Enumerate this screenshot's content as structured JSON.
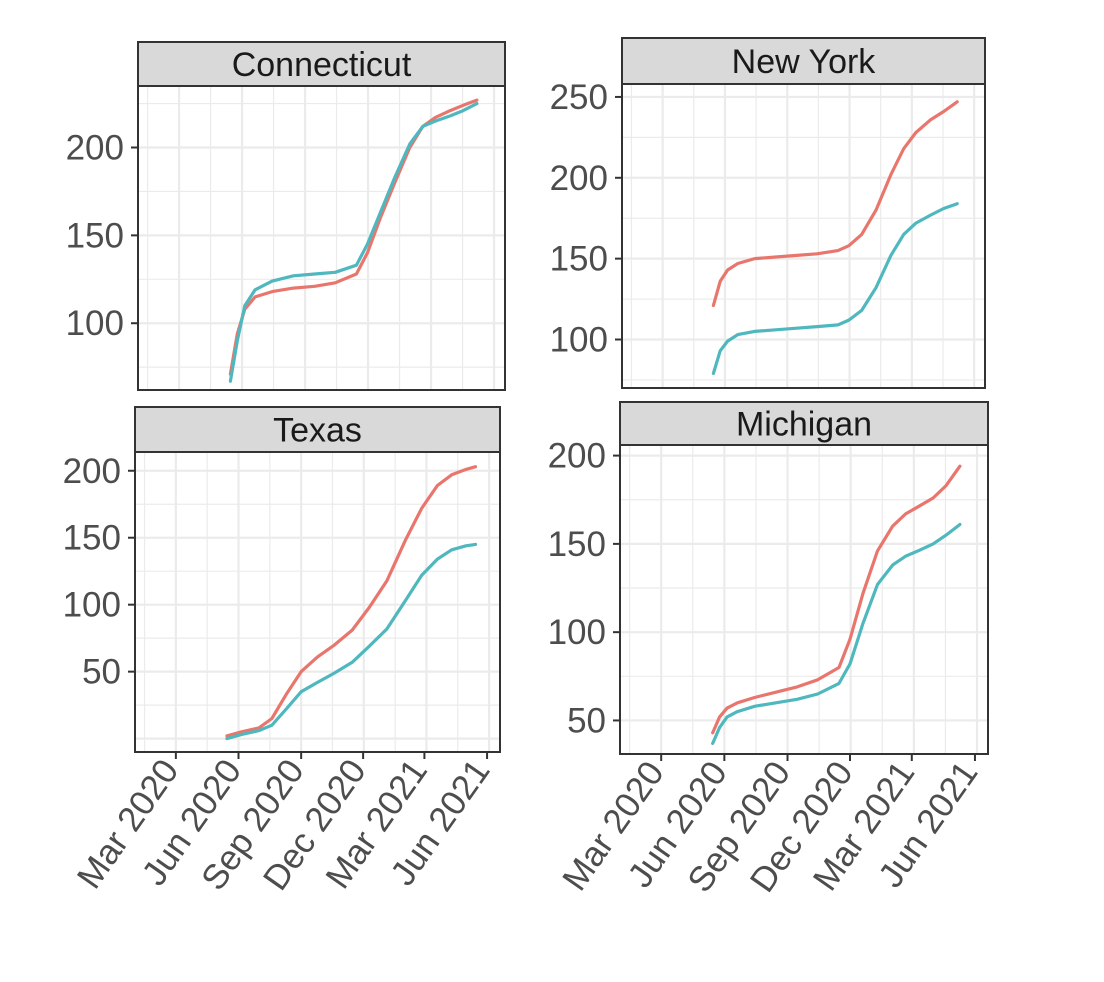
{
  "colors": {
    "series_1": "#E8766D",
    "series_2": "#4FB7BE",
    "strip_fill": "#D9D9D9",
    "grid": "#EBEBEB",
    "frame": "#333333",
    "tick_text": "#4D4D4D"
  },
  "chart_data": [
    {
      "type": "line",
      "panel": "Connecticut",
      "x_ticks": [
        "Mar 2020",
        "Jun 2020",
        "Sep 2020",
        "Dec 2020",
        "Mar 2021",
        "Jun 2021"
      ],
      "y_ticks": [
        100,
        150,
        200
      ],
      "xlim": [
        "2020-01-01",
        "2021-06-20"
      ],
      "ylim": [
        62,
        235
      ],
      "grid": true,
      "series": [
        {
          "x": [
            "2020-05-15",
            "2020-05-25",
            "2020-06-05",
            "2020-06-20",
            "2020-07-15",
            "2020-08-15",
            "2020-09-15",
            "2020-10-15",
            "2020-11-15",
            "2020-12-01",
            "2020-12-20",
            "2021-01-10",
            "2021-02-01",
            "2021-02-20",
            "2021-03-10",
            "2021-04-01",
            "2021-04-20",
            "2021-05-10"
          ],
          "y": [
            71,
            94,
            108,
            115,
            118,
            120,
            121,
            123,
            128,
            140,
            160,
            180,
            200,
            212,
            217,
            221,
            224,
            227
          ]
        },
        {
          "x": [
            "2020-05-15",
            "2020-05-25",
            "2020-06-05",
            "2020-06-20",
            "2020-07-15",
            "2020-08-15",
            "2020-09-15",
            "2020-10-15",
            "2020-11-15",
            "2020-12-01",
            "2020-12-20",
            "2021-01-10",
            "2021-02-01",
            "2021-02-20",
            "2021-03-10",
            "2021-04-01",
            "2021-04-20",
            "2021-05-10"
          ],
          "y": [
            67,
            90,
            110,
            119,
            124,
            127,
            128,
            129,
            133,
            145,
            163,
            183,
            202,
            212,
            215,
            218,
            221,
            225
          ]
        }
      ]
    },
    {
      "type": "line",
      "panel": "New York",
      "x_ticks": [
        "Mar 2020",
        "Jun 2020",
        "Sep 2020",
        "Dec 2020",
        "Mar 2021",
        "Jun 2021"
      ],
      "y_ticks": [
        100,
        150,
        200,
        250
      ],
      "xlim": [
        "2020-01-01",
        "2021-06-20"
      ],
      "ylim": [
        70,
        258
      ],
      "grid": true,
      "series": [
        {
          "x": [
            "2020-05-15",
            "2020-05-25",
            "2020-06-05",
            "2020-06-20",
            "2020-07-15",
            "2020-08-15",
            "2020-09-15",
            "2020-10-15",
            "2020-11-15",
            "2020-12-01",
            "2020-12-20",
            "2021-01-10",
            "2021-02-01",
            "2021-02-20",
            "2021-03-10",
            "2021-04-01",
            "2021-04-20",
            "2021-05-10"
          ],
          "y": [
            121,
            136,
            143,
            147,
            150,
            151,
            152,
            153,
            155,
            158,
            165,
            180,
            202,
            218,
            228,
            236,
            241,
            247
          ]
        },
        {
          "x": [
            "2020-05-15",
            "2020-05-25",
            "2020-06-05",
            "2020-06-20",
            "2020-07-15",
            "2020-08-15",
            "2020-09-15",
            "2020-10-15",
            "2020-11-15",
            "2020-12-01",
            "2020-12-20",
            "2021-01-10",
            "2021-02-01",
            "2021-02-20",
            "2021-03-10",
            "2021-04-01",
            "2021-04-20",
            "2021-05-10"
          ],
          "y": [
            79,
            93,
            99,
            103,
            105,
            106,
            107,
            108,
            109,
            112,
            118,
            132,
            152,
            165,
            172,
            177,
            181,
            184
          ]
        }
      ]
    },
    {
      "type": "line",
      "panel": "Texas",
      "x_ticks": [
        "Mar 2020",
        "Jun 2020",
        "Sep 2020",
        "Dec 2020",
        "Mar 2021",
        "Jun 2021"
      ],
      "y_ticks": [
        50,
        100,
        150,
        200
      ],
      "xlim": [
        "2020-01-01",
        "2021-06-20"
      ],
      "ylim": [
        -10,
        214
      ],
      "grid": true,
      "series": [
        {
          "x": [
            "2020-05-15",
            "2020-06-05",
            "2020-07-01",
            "2020-07-20",
            "2020-08-10",
            "2020-09-01",
            "2020-09-25",
            "2020-10-20",
            "2020-11-15",
            "2020-12-10",
            "2021-01-05",
            "2021-02-01",
            "2021-02-25",
            "2021-03-20",
            "2021-04-10",
            "2021-05-01",
            "2021-05-15"
          ],
          "y": [
            2,
            5,
            8,
            15,
            33,
            50,
            61,
            70,
            81,
            98,
            118,
            148,
            172,
            189,
            197,
            201,
            203
          ]
        },
        {
          "x": [
            "2020-05-15",
            "2020-06-05",
            "2020-07-01",
            "2020-07-20",
            "2020-08-10",
            "2020-09-01",
            "2020-09-25",
            "2020-10-20",
            "2020-11-15",
            "2020-12-10",
            "2021-01-05",
            "2021-02-01",
            "2021-02-25",
            "2021-03-20",
            "2021-04-10",
            "2021-05-01",
            "2021-05-15"
          ],
          "y": [
            0,
            3,
            6,
            10,
            22,
            35,
            42,
            49,
            57,
            69,
            82,
            103,
            122,
            134,
            141,
            144,
            145
          ]
        }
      ]
    },
    {
      "type": "line",
      "panel": "Michigan",
      "x_ticks": [
        "Mar 2020",
        "Jun 2020",
        "Sep 2020",
        "Dec 2020",
        "Mar 2021",
        "Jun 2021"
      ],
      "y_ticks": [
        50,
        100,
        150,
        200
      ],
      "xlim": [
        "2020-01-01",
        "2021-06-20"
      ],
      "ylim": [
        31,
        206
      ],
      "grid": true,
      "series": [
        {
          "x": [
            "2020-05-15",
            "2020-05-25",
            "2020-06-05",
            "2020-06-20",
            "2020-07-15",
            "2020-08-15",
            "2020-09-15",
            "2020-10-15",
            "2020-11-15",
            "2020-12-01",
            "2020-12-20",
            "2021-01-10",
            "2021-02-01",
            "2021-02-20",
            "2021-03-10",
            "2021-04-01",
            "2021-04-20",
            "2021-05-10"
          ],
          "y": [
            43,
            52,
            57,
            60,
            63,
            66,
            69,
            73,
            80,
            96,
            122,
            146,
            160,
            167,
            171,
            176,
            183,
            194
          ]
        },
        {
          "x": [
            "2020-05-15",
            "2020-05-25",
            "2020-06-05",
            "2020-06-20",
            "2020-07-15",
            "2020-08-15",
            "2020-09-15",
            "2020-10-15",
            "2020-11-15",
            "2020-12-01",
            "2020-12-20",
            "2021-01-10",
            "2021-02-01",
            "2021-02-20",
            "2021-03-10",
            "2021-04-01",
            "2021-04-20",
            "2021-05-10"
          ],
          "y": [
            37,
            46,
            52,
            55,
            58,
            60,
            62,
            65,
            71,
            82,
            105,
            127,
            138,
            143,
            146,
            150,
            155,
            161
          ]
        }
      ]
    }
  ]
}
